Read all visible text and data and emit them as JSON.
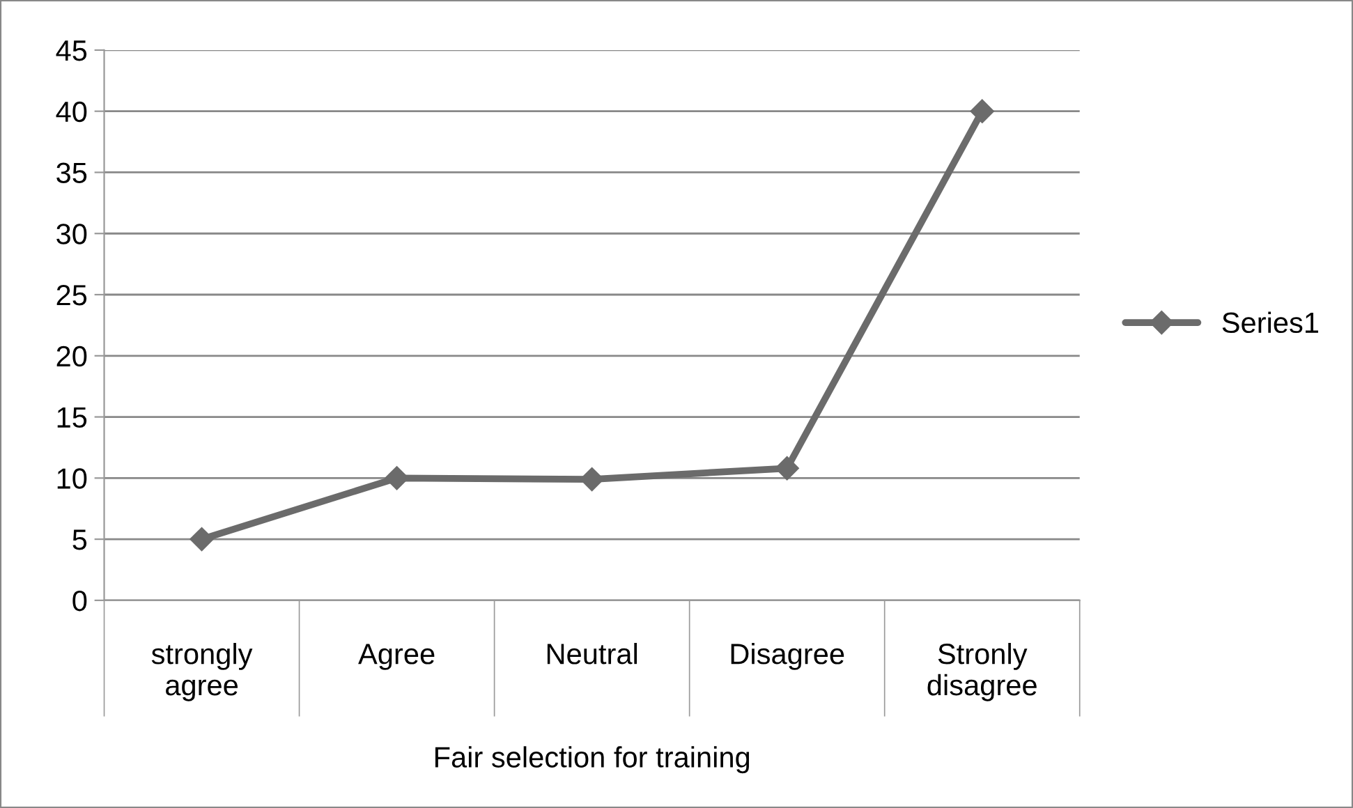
{
  "chart_data": {
    "type": "line",
    "xlabel": "Fair selection for training",
    "categories": [
      "strongly\nagree",
      "Agree",
      "Neutral",
      "Disagree",
      "Stronly\ndisagree"
    ],
    "series": [
      {
        "name": "Series1",
        "color": "#6b6b6b",
        "values": [
          5,
          10,
          9.9,
          10.8,
          40
        ]
      }
    ],
    "ylim": [
      0,
      45
    ],
    "yticks": [
      0,
      5,
      10,
      15,
      20,
      25,
      30,
      35,
      40,
      45
    ],
    "grid": "y",
    "legend": "right",
    "marker": "diamond",
    "line_style": "solid"
  }
}
